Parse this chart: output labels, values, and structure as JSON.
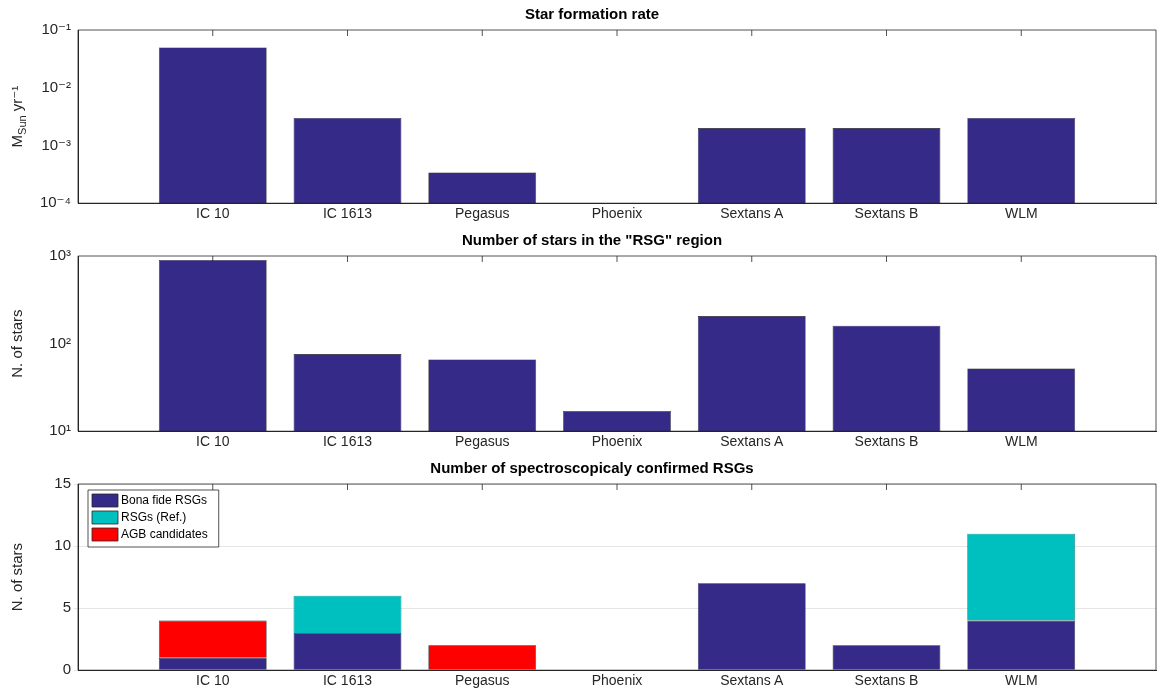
{
  "chart_data": [
    {
      "type": "bar",
      "title": "Star formation rate",
      "ylabel": "M$_{Sun}$ yr⁻¹",
      "log": "y",
      "grid": false,
      "legend": false,
      "categories": [
        "IC 10",
        "IC 1613",
        "Pegasus",
        "Phoenix",
        "Sextans A",
        "Sextans B",
        "WLM"
      ],
      "ylim": [
        0.0001,
        0.1
      ],
      "yticks": [
        {
          "value": 0.0001,
          "label": "10⁻⁴"
        },
        {
          "value": 0.001,
          "label": "10⁻³"
        },
        {
          "value": 0.01,
          "label": "10⁻²"
        },
        {
          "value": 0.1,
          "label": "10⁻¹"
        }
      ],
      "series": [
        {
          "color": "#352a87",
          "values": [
            0.05,
            0.003,
            0.00034,
            null,
            0.002,
            0.002,
            0.003
          ]
        }
      ]
    },
    {
      "type": "bar",
      "title": "Number of stars in the \"RSG\" region",
      "ylabel": "N. of stars",
      "log": "y",
      "grid": false,
      "legend": false,
      "categories": [
        "IC 10",
        "IC 1613",
        "Pegasus",
        "Phoenix",
        "Sextans A",
        "Sextans B",
        "WLM"
      ],
      "ylim": [
        10,
        1000
      ],
      "yticks": [
        {
          "value": 10,
          "label": "10¹"
        },
        {
          "value": 100,
          "label": "10²"
        },
        {
          "value": 1000,
          "label": "10³"
        }
      ],
      "series": [
        {
          "color": "#352a87",
          "values": [
            900,
            76,
            66,
            17,
            206,
            160,
            52
          ]
        }
      ]
    },
    {
      "type": "bar",
      "title": "Number of spectroscopicaly confirmed RSGs",
      "ylabel": "N. of stars",
      "stacked": true,
      "grid": "y",
      "legend": "top left",
      "categories": [
        "IC 10",
        "IC 1613",
        "Pegasus",
        "Phoenix",
        "Sextans A",
        "Sextans B",
        "WLM"
      ],
      "ylim": [
        0,
        15
      ],
      "yticks": [
        0,
        5,
        10,
        15
      ],
      "series": [
        {
          "name": "Bona fide RSGs",
          "color": "#352a87",
          "values": [
            1,
            3,
            0,
            0,
            7,
            2,
            4
          ]
        },
        {
          "name": "RSGs (Ref.)",
          "color": "#00bfbf",
          "values": [
            0,
            3,
            0,
            0,
            0,
            0,
            7
          ]
        },
        {
          "name": "AGB candidates",
          "color": "#ff0000",
          "values": [
            3,
            0,
            2,
            0,
            0,
            0,
            0
          ]
        }
      ]
    }
  ]
}
